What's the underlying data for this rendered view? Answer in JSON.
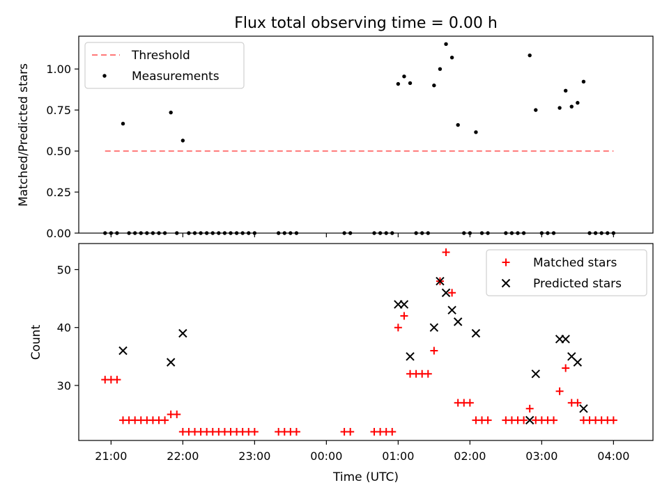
{
  "chart_data": [
    {
      "type": "scatter",
      "title": "Flux total observing time = 0.00 h",
      "xlabel": "",
      "ylabel": "Matched/Predicted stars",
      "xlim": [
        "20:33",
        "04:33"
      ],
      "ylim": [
        0.0,
        1.2
      ],
      "yticks": [
        "0.00",
        "0.25",
        "0.50",
        "0.75",
        "1.00"
      ],
      "xticks": [
        "21:00",
        "22:00",
        "23:00",
        "00:00",
        "01:00",
        "02:00",
        "03:00",
        "04:00"
      ],
      "grid": false,
      "legend_position": "upper-left",
      "series": [
        {
          "name": "Threshold",
          "style": "dashed-line",
          "color": "#ff7777",
          "x": [
            "20:55",
            "04:00"
          ],
          "y": [
            0.5,
            0.5
          ]
        },
        {
          "name": "Measurements",
          "style": "dot",
          "color": "#000000",
          "points": [
            [
              "20:55",
              0
            ],
            [
              "21:00",
              0
            ],
            [
              "21:05",
              0
            ],
            [
              "21:10",
              0.667
            ],
            [
              "21:15",
              0
            ],
            [
              "21:20",
              0
            ],
            [
              "21:25",
              0
            ],
            [
              "21:30",
              0
            ],
            [
              "21:35",
              0
            ],
            [
              "21:40",
              0
            ],
            [
              "21:45",
              0
            ],
            [
              "21:50",
              0.735
            ],
            [
              "21:55",
              0
            ],
            [
              "22:00",
              0.564
            ],
            [
              "22:05",
              0
            ],
            [
              "22:10",
              0
            ],
            [
              "22:15",
              0
            ],
            [
              "22:20",
              0
            ],
            [
              "22:25",
              0
            ],
            [
              "22:30",
              0
            ],
            [
              "22:35",
              0
            ],
            [
              "22:40",
              0
            ],
            [
              "22:45",
              0
            ],
            [
              "22:50",
              0
            ],
            [
              "22:55",
              0
            ],
            [
              "23:00",
              0
            ],
            [
              "23:20",
              0
            ],
            [
              "23:25",
              0
            ],
            [
              "23:30",
              0
            ],
            [
              "23:35",
              0
            ],
            [
              "00:15",
              0
            ],
            [
              "00:20",
              0
            ],
            [
              "00:40",
              0
            ],
            [
              "00:45",
              0
            ],
            [
              "00:50",
              0
            ],
            [
              "00:55",
              0
            ],
            [
              "01:00",
              0.909
            ],
            [
              "01:05",
              0.955
            ],
            [
              "01:10",
              0.914
            ],
            [
              "01:15",
              0
            ],
            [
              "01:20",
              0
            ],
            [
              "01:25",
              0
            ],
            [
              "01:30",
              0.9
            ],
            [
              "01:35",
              1.0
            ],
            [
              "01:40",
              1.152
            ],
            [
              "01:45",
              1.07
            ],
            [
              "01:50",
              0.659
            ],
            [
              "01:55",
              0
            ],
            [
              "02:00",
              0
            ],
            [
              "02:05",
              0.615
            ],
            [
              "02:10",
              0
            ],
            [
              "02:15",
              0
            ],
            [
              "02:30",
              0
            ],
            [
              "02:35",
              0
            ],
            [
              "02:40",
              0
            ],
            [
              "02:45",
              0
            ],
            [
              "02:50",
              1.083
            ],
            [
              "02:55",
              0.75
            ],
            [
              "03:00",
              0
            ],
            [
              "03:05",
              0
            ],
            [
              "03:10",
              0
            ],
            [
              "03:15",
              0.763
            ],
            [
              "03:20",
              0.868
            ],
            [
              "03:25",
              0.771
            ],
            [
              "03:30",
              0.794
            ],
            [
              "03:35",
              0.923
            ],
            [
              "03:40",
              0
            ],
            [
              "03:45",
              0
            ],
            [
              "03:50",
              0
            ],
            [
              "03:55",
              0
            ],
            [
              "04:00",
              0
            ]
          ]
        }
      ]
    },
    {
      "type": "scatter",
      "title": "",
      "xlabel": "Time (UTC)",
      "ylabel": "Count",
      "xlim": [
        "20:33",
        "04:33"
      ],
      "ylim": [
        20.5,
        54.5
      ],
      "yticks": [
        "30",
        "40",
        "50"
      ],
      "xticks": [
        "21:00",
        "22:00",
        "23:00",
        "00:00",
        "01:00",
        "02:00",
        "03:00",
        "04:00"
      ],
      "grid": false,
      "legend_position": "upper-right",
      "series": [
        {
          "name": "Matched stars",
          "style": "plus",
          "color": "#ff0000",
          "points": [
            [
              "20:55",
              31
            ],
            [
              "21:00",
              31
            ],
            [
              "21:05",
              31
            ],
            [
              "21:10",
              24
            ],
            [
              "21:15",
              24
            ],
            [
              "21:20",
              24
            ],
            [
              "21:25",
              24
            ],
            [
              "21:30",
              24
            ],
            [
              "21:35",
              24
            ],
            [
              "21:40",
              24
            ],
            [
              "21:45",
              24
            ],
            [
              "21:50",
              25
            ],
            [
              "21:55",
              25
            ],
            [
              "22:00",
              22
            ],
            [
              "22:05",
              22
            ],
            [
              "22:10",
              22
            ],
            [
              "22:15",
              22
            ],
            [
              "22:20",
              22
            ],
            [
              "22:25",
              22
            ],
            [
              "22:30",
              22
            ],
            [
              "22:35",
              22
            ],
            [
              "22:40",
              22
            ],
            [
              "22:45",
              22
            ],
            [
              "22:50",
              22
            ],
            [
              "22:55",
              22
            ],
            [
              "23:00",
              22
            ],
            [
              "23:20",
              22
            ],
            [
              "23:25",
              22
            ],
            [
              "23:30",
              22
            ],
            [
              "23:35",
              22
            ],
            [
              "00:15",
              22
            ],
            [
              "00:20",
              22
            ],
            [
              "00:40",
              22
            ],
            [
              "00:45",
              22
            ],
            [
              "00:50",
              22
            ],
            [
              "00:55",
              22
            ],
            [
              "01:00",
              40
            ],
            [
              "01:05",
              42
            ],
            [
              "01:10",
              32
            ],
            [
              "01:15",
              32
            ],
            [
              "01:20",
              32
            ],
            [
              "01:25",
              32
            ],
            [
              "01:30",
              36
            ],
            [
              "01:35",
              48
            ],
            [
              "01:40",
              53
            ],
            [
              "01:45",
              46
            ],
            [
              "01:50",
              27
            ],
            [
              "01:55",
              27
            ],
            [
              "02:00",
              27
            ],
            [
              "02:05",
              24
            ],
            [
              "02:10",
              24
            ],
            [
              "02:15",
              24
            ],
            [
              "02:30",
              24
            ],
            [
              "02:35",
              24
            ],
            [
              "02:40",
              24
            ],
            [
              "02:45",
              24
            ],
            [
              "02:50",
              26
            ],
            [
              "02:55",
              24
            ],
            [
              "03:00",
              24
            ],
            [
              "03:05",
              24
            ],
            [
              "03:10",
              24
            ],
            [
              "03:15",
              29
            ],
            [
              "03:20",
              33
            ],
            [
              "03:25",
              27
            ],
            [
              "03:30",
              27
            ],
            [
              "03:35",
              24
            ],
            [
              "03:40",
              24
            ],
            [
              "03:45",
              24
            ],
            [
              "03:50",
              24
            ],
            [
              "03:55",
              24
            ],
            [
              "04:00",
              24
            ]
          ]
        },
        {
          "name": "Predicted stars",
          "style": "x",
          "color": "#000000",
          "points": [
            [
              "21:10",
              36
            ],
            [
              "21:50",
              34
            ],
            [
              "22:00",
              39
            ],
            [
              "01:00",
              44
            ],
            [
              "01:05",
              44
            ],
            [
              "01:10",
              35
            ],
            [
              "01:30",
              40
            ],
            [
              "01:35",
              48
            ],
            [
              "01:40",
              46
            ],
            [
              "01:45",
              43
            ],
            [
              "01:50",
              41
            ],
            [
              "02:05",
              39
            ],
            [
              "02:50",
              24
            ],
            [
              "02:55",
              32
            ],
            [
              "03:15",
              38
            ],
            [
              "03:20",
              38
            ],
            [
              "03:25",
              35
            ],
            [
              "03:30",
              34
            ],
            [
              "03:35",
              26
            ]
          ]
        }
      ]
    }
  ]
}
